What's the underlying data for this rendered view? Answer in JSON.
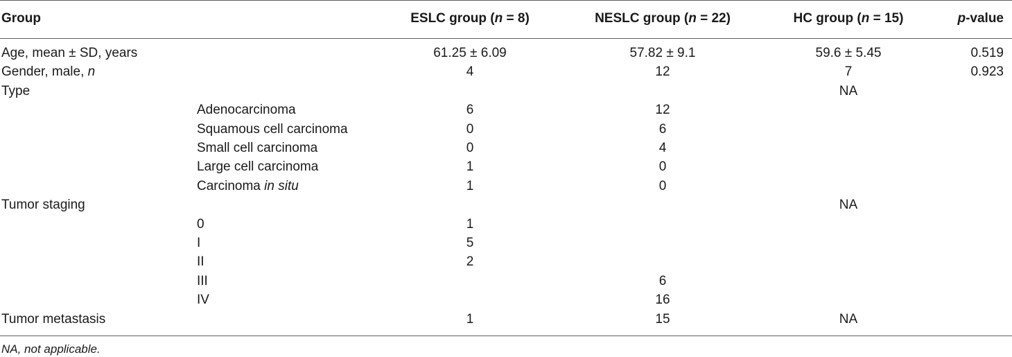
{
  "header": {
    "group": "Group",
    "eslc_prefix": "ESLC group (",
    "eslc_n": "n",
    "eslc_suffix": " = 8)",
    "neslc_prefix": "NESLC group (",
    "neslc_n": "n",
    "neslc_suffix": " = 22)",
    "hc_prefix": "HC group (",
    "hc_n": "n",
    "hc_suffix": " = 15)",
    "p_italic": "p",
    "p_suffix": "-value"
  },
  "rows": [
    {
      "label": "Age, mean ± SD, years",
      "sub": "",
      "eslc": "61.25 ± 6.09",
      "neslc": "57.82 ± 9.1",
      "hc": "59.6 ± 5.45",
      "p": "0.519"
    },
    {
      "label": "Gender, male, ",
      "label_italic": "n",
      "sub": "",
      "eslc": "4",
      "neslc": "12",
      "hc": "7",
      "p": "0.923"
    },
    {
      "label": "Type",
      "sub": "",
      "eslc": "",
      "neslc": "",
      "hc": "NA",
      "p": ""
    },
    {
      "label": "",
      "sub": "Adenocarcinoma",
      "eslc": "6",
      "neslc": "12",
      "hc": "",
      "p": ""
    },
    {
      "label": "",
      "sub": "Squamous cell carcinoma",
      "eslc": "0",
      "neslc": "6",
      "hc": "",
      "p": ""
    },
    {
      "label": "",
      "sub": "Small cell carcinoma",
      "eslc": "0",
      "neslc": "4",
      "hc": "",
      "p": ""
    },
    {
      "label": "",
      "sub": "Large cell carcinoma",
      "eslc": "1",
      "neslc": "0",
      "hc": "",
      "p": ""
    },
    {
      "label": "",
      "sub": "Carcinoma ",
      "sub_italic": "in situ",
      "eslc": "1",
      "neslc": "0",
      "hc": "",
      "p": ""
    },
    {
      "label": "Tumor staging",
      "sub": "",
      "eslc": "",
      "neslc": "",
      "hc": "NA",
      "p": ""
    },
    {
      "label": "",
      "sub": "0",
      "eslc": "1",
      "neslc": "",
      "hc": "",
      "p": ""
    },
    {
      "label": "",
      "sub": "I",
      "eslc": "5",
      "neslc": "",
      "hc": "",
      "p": ""
    },
    {
      "label": "",
      "sub": "II",
      "eslc": "2",
      "neslc": "",
      "hc": "",
      "p": ""
    },
    {
      "label": "",
      "sub": "III",
      "eslc": "",
      "neslc": "6",
      "hc": "",
      "p": ""
    },
    {
      "label": "",
      "sub": "IV",
      "eslc": "",
      "neslc": "16",
      "hc": "",
      "p": ""
    },
    {
      "label": "Tumor metastasis",
      "sub": "",
      "eslc": "1",
      "neslc": "15",
      "hc": "NA",
      "p": ""
    }
  ],
  "footnote": "NA, not applicable."
}
